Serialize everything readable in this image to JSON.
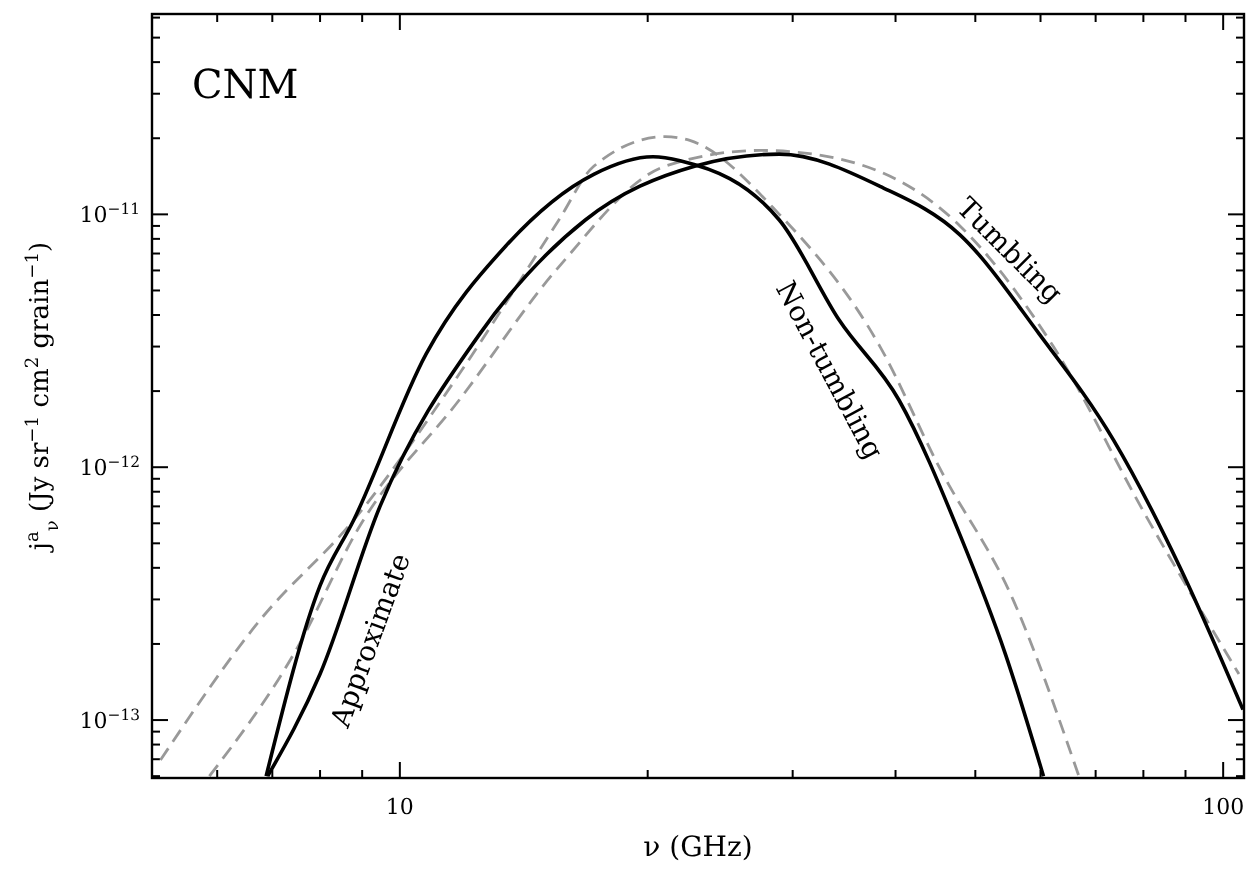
{
  "chart_data": {
    "type": "line",
    "xlabel": "ν (GHz)",
    "ylabel": "j$^{a}$$_{ν}$  (Jy sr$^{−1}$  cm$^{2}$  grain$^{−1}$)",
    "log": "xy",
    "grid": false,
    "xlim": [
      5,
      106
    ],
    "ylim": [
      5.9e-14,
      6.2e-11
    ],
    "xticks": [
      {
        "value": 6,
        "label": null
      },
      {
        "value": 7,
        "label": null
      },
      {
        "value": 8,
        "label": null
      },
      {
        "value": 9,
        "label": null
      },
      10,
      {
        "value": 20,
        "label": null
      },
      {
        "value": 30,
        "label": null
      },
      {
        "value": 40,
        "label": null
      },
      {
        "value": 50,
        "label": null
      },
      {
        "value": 60,
        "label": null
      },
      {
        "value": 70,
        "label": null
      },
      {
        "value": 80,
        "label": null
      },
      {
        "value": 90,
        "label": null
      },
      100
    ],
    "yticks": [
      {
        "value": 6e-14,
        "label": null
      },
      {
        "value": 7e-14,
        "label": null
      },
      {
        "value": 8e-14,
        "label": null
      },
      {
        "value": 9e-14,
        "label": null
      },
      {
        "value": 1e-13,
        "label": "10$^{−13}$"
      },
      {
        "value": 2e-13,
        "label": null
      },
      {
        "value": 3e-13,
        "label": null
      },
      {
        "value": 4e-13,
        "label": null
      },
      {
        "value": 5e-13,
        "label": null
      },
      {
        "value": 6e-13,
        "label": null
      },
      {
        "value": 7e-13,
        "label": null
      },
      {
        "value": 8e-13,
        "label": null
      },
      {
        "value": 9e-13,
        "label": null
      },
      {
        "value": 1e-12,
        "label": "10$^{−12}$"
      },
      {
        "value": 2e-12,
        "label": null
      },
      {
        "value": 3e-12,
        "label": null
      },
      {
        "value": 4e-12,
        "label": null
      },
      {
        "value": 5e-12,
        "label": null
      },
      {
        "value": 6e-12,
        "label": null
      },
      {
        "value": 7e-12,
        "label": null
      },
      {
        "value": 8e-12,
        "label": null
      },
      {
        "value": 9e-12,
        "label": null
      },
      {
        "value": 1e-11,
        "label": "10$^{−11}$"
      },
      {
        "value": 2e-11,
        "label": null
      },
      {
        "value": 3e-11,
        "label": null
      },
      {
        "value": 4e-11,
        "label": null
      },
      {
        "value": 5e-11,
        "label": null
      },
      {
        "value": 6e-11,
        "label": null
      }
    ],
    "marker": "none",
    "series": [
      {
        "color": "#999999",
        "line_style": "dashed",
        "x": [
          5.12,
          6.76,
          8.79,
          11.8,
          15.6,
          17.2,
          21.0,
          22.5,
          28.9,
          38.3,
          45.2,
          55.6,
          66.8
        ],
        "values": [
          6.95e-14,
          2.48e-13,
          6.18e-13,
          2.33e-12,
          9.5e-12,
          1.55e-11,
          2.03e-11,
          1.96e-11,
          1e-11,
          3e-12,
          1e-12,
          2.98e-13,
          6e-14
        ]
      },
      {
        "color": "#999999",
        "line_style": "dashed",
        "x": [
          5.87,
          7.43,
          8.94,
          11.8,
          15.6,
          21.0,
          27.4,
          31.8,
          47.9,
          62.2,
          80.4,
          104.5
        ],
        "values": [
          6e-14,
          1.82e-13,
          5.85e-13,
          1.84e-12,
          6.2e-12,
          1.55e-11,
          1.79e-11,
          1.73e-11,
          9e-12,
          3e-12,
          6.5e-13,
          1.52e-13
        ]
      },
      {
        "color": "#000000",
        "line_style": "solid",
        "x": [
          6.88,
          8.0,
          8.79,
          10.76,
          13.45,
          17.2,
          20.3,
          21.9,
          28.9,
          34.2,
          40.4,
          47.9,
          54.4,
          60.5
        ],
        "values": [
          6e-14,
          3.4e-13,
          6.18e-13,
          2.8e-12,
          7.5e-12,
          1.44e-11,
          1.69e-11,
          1.63e-11,
          9.5e-12,
          3.8e-12,
          1.84e-12,
          5.4e-13,
          1.82e-13,
          6e-14
        ]
      },
      {
        "color": "#000000",
        "line_style": "solid",
        "x": [
          6.91,
          8.0,
          9.46,
          12.5,
          16.8,
          22.8,
          28.9,
          38.3,
          47.9,
          59.8,
          73.6,
          88.5,
          105.7
        ],
        "values": [
          6e-14,
          1.52e-13,
          7e-13,
          3.36e-12,
          9.5e-12,
          1.55e-11,
          1.73e-11,
          1.29e-11,
          8.3e-12,
          3.36e-12,
          1.28e-12,
          4.06e-13,
          1.1e-13
        ]
      }
    ],
    "annotations": [
      "CNM",
      "Non-tumbling",
      "Tumbling",
      "Approximate"
    ]
  }
}
